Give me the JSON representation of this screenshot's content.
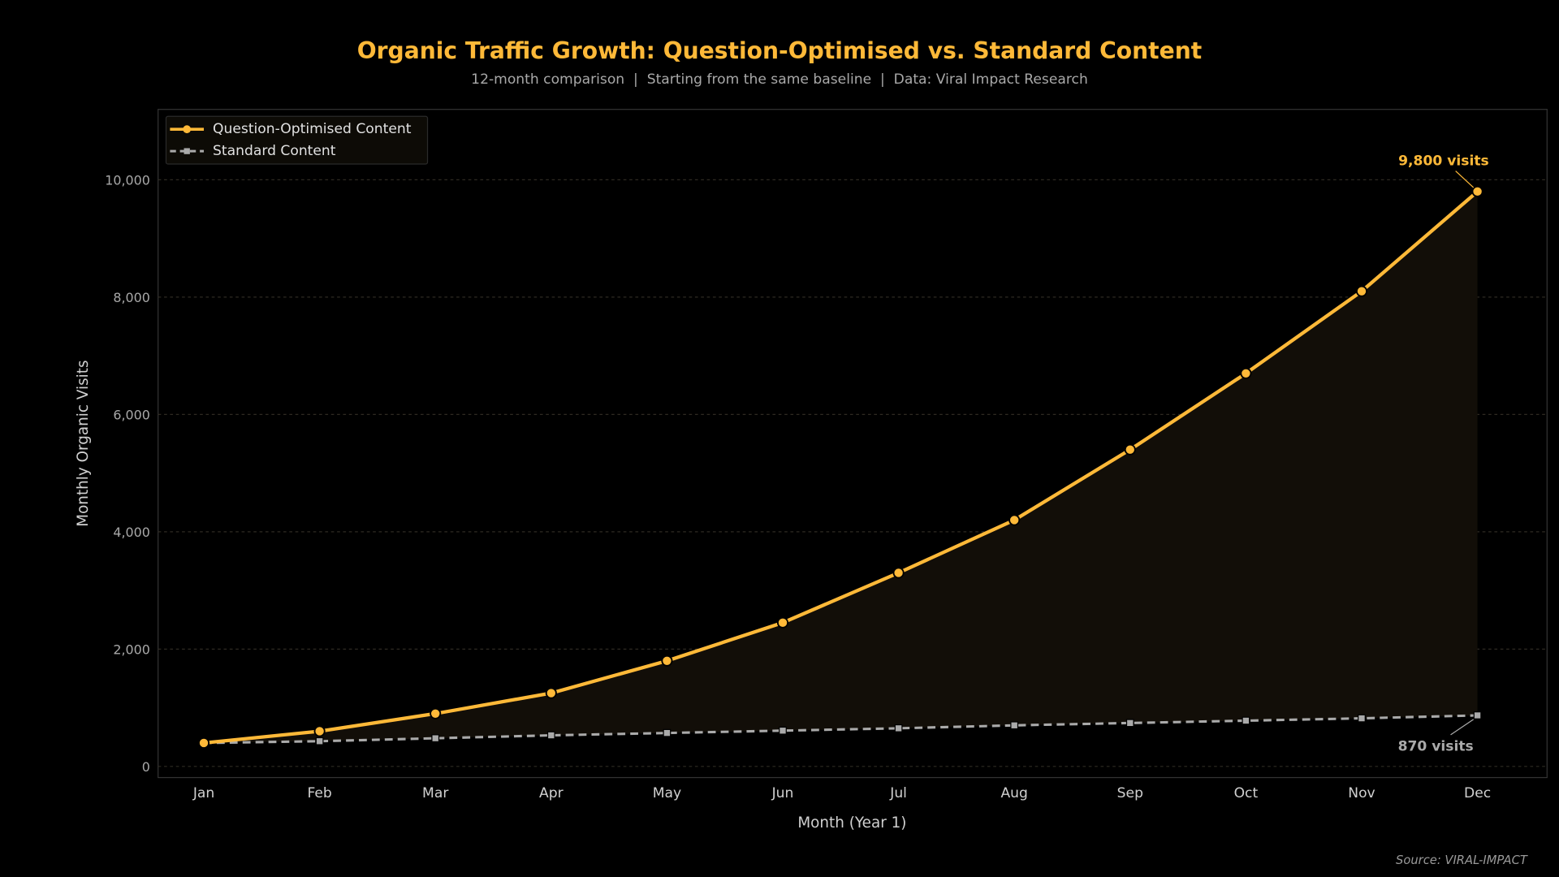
{
  "chart_data": {
    "type": "line",
    "title": "Organic Traffic Growth: Question-Optimised vs. Standard Content",
    "subtitle": "12-month comparison  |  Starting from the same baseline  |  Data: Viral Impact Research",
    "xlabel": "Month (Year 1)",
    "ylabel": "Monthly Organic Visits",
    "categories": [
      "Jan",
      "Feb",
      "Mar",
      "Apr",
      "May",
      "Jun",
      "Jul",
      "Aug",
      "Sep",
      "Oct",
      "Nov",
      "Dec"
    ],
    "ylim": [
      -190,
      11200
    ],
    "yticks": [
      0,
      2000,
      4000,
      6000,
      8000,
      10000
    ],
    "ytick_labels": [
      "0",
      "2,000",
      "4,000",
      "6,000",
      "8,000",
      "10,000"
    ],
    "grid": true,
    "legend_position": "top-left",
    "series": [
      {
        "name": "Question-Optimised Content",
        "color": "#FFB938",
        "style": "solid",
        "marker": "circle",
        "filled_area": true,
        "values": [
          400,
          600,
          900,
          1250,
          1800,
          2450,
          3300,
          4200,
          5400,
          6700,
          8100,
          9800
        ]
      },
      {
        "name": "Standard Content",
        "color": "#AAAAAA",
        "style": "dashed",
        "marker": "square",
        "values": [
          400,
          430,
          480,
          530,
          570,
          610,
          650,
          700,
          740,
          780,
          820,
          870
        ]
      }
    ],
    "annotations": [
      {
        "text": "9,800 visits",
        "series": 0,
        "category": "Dec",
        "color": "#FFB938"
      },
      {
        "text": "870 visits",
        "series": 1,
        "category": "Dec",
        "color": "#AAAAAA"
      }
    ],
    "source": "Source: VIRAL-IMPACT"
  }
}
